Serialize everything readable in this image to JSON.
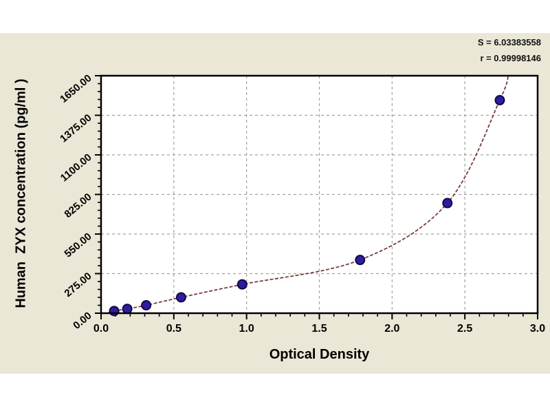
{
  "panel": {
    "background_color": "#eae7d6",
    "plot_background_color": "#ffffff",
    "axis_color": "#000000"
  },
  "stats": {
    "line1": "S = 6.03383558",
    "line2": "r = 0.99998146"
  },
  "chart_data": {
    "type": "scatter",
    "title": "",
    "xlabel": "Optical Density",
    "ylabel": "Human  ZYX concentration (pg/ml )",
    "xlim": [
      0,
      3.0
    ],
    "ylim": [
      0,
      1650
    ],
    "grid": {
      "show": true,
      "style": "dashed",
      "color": "#a3a398"
    },
    "x_tick_values": [
      0,
      0.5,
      1.0,
      1.5,
      2.0,
      2.5,
      3.0
    ],
    "x_tick_labels": [
      "0.0",
      "0.5",
      "1.0",
      "1.5",
      "2.0",
      "2.5",
      "3.0"
    ],
    "x_minor_step": 0.1,
    "y_tick_values": [
      0,
      275,
      550,
      825,
      1100,
      1375,
      1650
    ],
    "y_tick_labels": [
      "0.00",
      "275.00",
      "550.00",
      "825.00",
      "1100.00",
      "1375.00",
      "1650.00"
    ],
    "y_minor_step": 55,
    "annotations": [
      "S = 6.03383558",
      "r = 0.99998146"
    ],
    "series": [
      {
        "name": "standard-points",
        "kind": "scatter",
        "marker": "circle",
        "marker_color": "#2f1d9e",
        "marker_edge_color": "#120847",
        "points": [
          [
            0.09,
            15
          ],
          [
            0.18,
            30
          ],
          [
            0.31,
            55
          ],
          [
            0.55,
            110
          ],
          [
            0.97,
            200
          ],
          [
            1.78,
            370
          ],
          [
            2.38,
            765
          ],
          [
            2.74,
            1480
          ]
        ]
      },
      {
        "name": "fit-curve",
        "kind": "line",
        "line_style": "dashed",
        "line_color": "#7a3b3b",
        "points": [
          [
            0.05,
            3
          ],
          [
            0.09,
            15
          ],
          [
            0.18,
            30
          ],
          [
            0.31,
            55
          ],
          [
            0.55,
            110
          ],
          [
            0.97,
            200
          ],
          [
            1.78,
            370
          ],
          [
            2.38,
            765
          ],
          [
            2.74,
            1480
          ],
          [
            2.8,
            1665
          ]
        ]
      }
    ]
  }
}
